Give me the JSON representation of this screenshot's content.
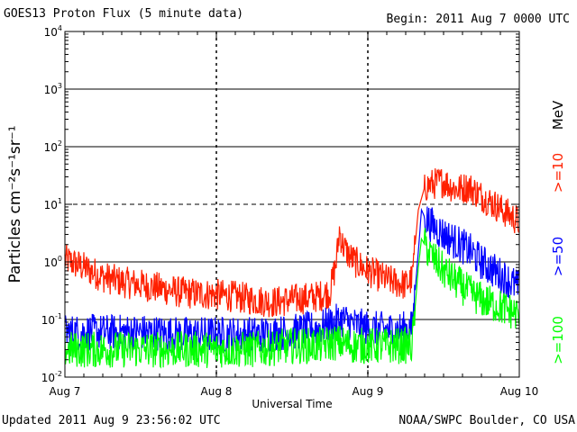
{
  "header": {
    "title": "GOES13 Proton Flux (5 minute data)",
    "begin": "Begin: 2011 Aug 7 0000 UTC"
  },
  "footer": {
    "updated": "Updated 2011 Aug  9 23:56:02 UTC",
    "source": "NOAA/SWPC Boulder, CO USA"
  },
  "chart_data": {
    "type": "line",
    "title": "GOES13 Proton Flux (5 minute data)",
    "xlabel": "Universal Time",
    "ylabel": "Particles cm⁻²s⁻¹sr⁻¹",
    "y_scale": "log",
    "ylim": [
      0.01,
      10000
    ],
    "xlim": [
      0,
      72
    ],
    "x_unit": "hours since 2011 Aug 7 0000 UTC",
    "y_ticks": [
      {
        "base": "10",
        "exp": "-2",
        "value": 0.01
      },
      {
        "base": "10",
        "exp": "-1",
        "value": 0.1
      },
      {
        "base": "10",
        "exp": "0",
        "value": 1
      },
      {
        "base": "10",
        "exp": "1",
        "value": 10
      },
      {
        "base": "10",
        "exp": "2",
        "value": 100
      },
      {
        "base": "10",
        "exp": "3",
        "value": 1000
      },
      {
        "base": "10",
        "exp": "4",
        "value": 10000
      }
    ],
    "x_ticks": [
      {
        "label": "Aug 7",
        "value": 0
      },
      {
        "label": "Aug 8",
        "value": 24
      },
      {
        "label": "Aug 9",
        "value": 48
      },
      {
        "label": "Aug 10",
        "value": 72
      }
    ],
    "threshold_dashed": 10,
    "legend_unit": "MeV",
    "series": [
      {
        "name": ">=10",
        "color": "#ff2000",
        "points": [
          [
            0,
            1.1
          ],
          [
            3,
            0.8
          ],
          [
            6,
            0.55
          ],
          [
            9,
            0.45
          ],
          [
            12,
            0.4
          ],
          [
            15,
            0.35
          ],
          [
            18,
            0.3
          ],
          [
            21,
            0.28
          ],
          [
            24,
            0.27
          ],
          [
            27,
            0.25
          ],
          [
            30,
            0.22
          ],
          [
            33,
            0.2
          ],
          [
            36,
            0.22
          ],
          [
            40,
            0.25
          ],
          [
            42,
            0.3
          ],
          [
            43,
            1.0
          ],
          [
            43.5,
            3.5
          ],
          [
            44,
            2.0
          ],
          [
            45,
            1.3
          ],
          [
            46,
            1.0
          ],
          [
            48,
            0.7
          ],
          [
            50,
            0.55
          ],
          [
            52,
            0.45
          ],
          [
            54,
            0.4
          ],
          [
            55,
            0.5
          ],
          [
            56,
            8
          ],
          [
            57,
            20
          ],
          [
            58,
            22
          ],
          [
            60,
            25
          ],
          [
            62,
            18
          ],
          [
            64,
            20
          ],
          [
            66,
            14
          ],
          [
            68,
            10
          ],
          [
            70,
            7
          ],
          [
            72,
            5
          ]
        ]
      },
      {
        "name": ">=50",
        "color": "#0000ff",
        "points": [
          [
            0,
            0.06
          ],
          [
            6,
            0.06
          ],
          [
            12,
            0.06
          ],
          [
            18,
            0.055
          ],
          [
            24,
            0.055
          ],
          [
            30,
            0.055
          ],
          [
            36,
            0.06
          ],
          [
            40,
            0.07
          ],
          [
            43,
            0.09
          ],
          [
            44,
            0.1
          ],
          [
            46,
            0.08
          ],
          [
            48,
            0.07
          ],
          [
            52,
            0.065
          ],
          [
            55,
            0.07
          ],
          [
            56,
            1.5
          ],
          [
            56.5,
            8
          ],
          [
            57,
            6
          ],
          [
            58,
            4.5
          ],
          [
            60,
            3
          ],
          [
            62,
            2.2
          ],
          [
            64,
            1.6
          ],
          [
            66,
            1.0
          ],
          [
            68,
            0.7
          ],
          [
            70,
            0.5
          ],
          [
            72,
            0.35
          ]
        ]
      },
      {
        "name": ">=100",
        "color": "#00ff00",
        "points": [
          [
            0,
            0.03
          ],
          [
            6,
            0.03
          ],
          [
            12,
            0.03
          ],
          [
            18,
            0.03
          ],
          [
            24,
            0.03
          ],
          [
            30,
            0.03
          ],
          [
            36,
            0.035
          ],
          [
            40,
            0.035
          ],
          [
            43,
            0.04
          ],
          [
            46,
            0.035
          ],
          [
            48,
            0.035
          ],
          [
            52,
            0.035
          ],
          [
            55,
            0.035
          ],
          [
            56,
            0.8
          ],
          [
            56.5,
            2.5
          ],
          [
            57,
            2
          ],
          [
            58,
            1.3
          ],
          [
            60,
            0.7
          ],
          [
            62,
            0.45
          ],
          [
            64,
            0.3
          ],
          [
            66,
            0.22
          ],
          [
            68,
            0.18
          ],
          [
            70,
            0.15
          ],
          [
            72,
            0.12
          ]
        ]
      }
    ]
  }
}
